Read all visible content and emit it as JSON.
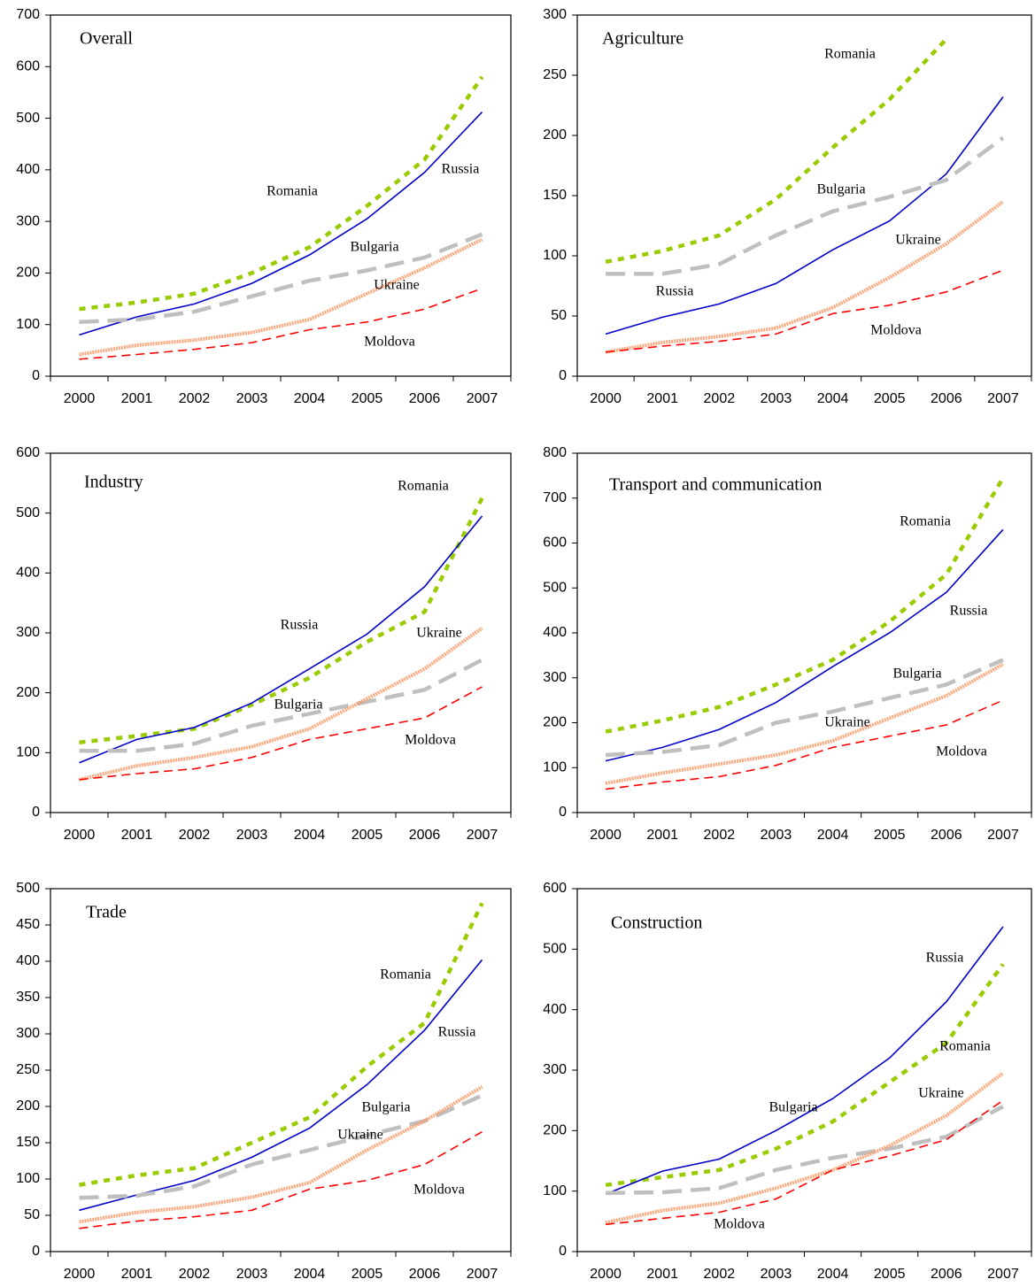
{
  "chart_data": [
    {
      "type": "line",
      "title": "Overall",
      "categories": [
        "2000",
        "2001",
        "2002",
        "2003",
        "2004",
        "2005",
        "2006",
        "2007"
      ],
      "ylim": [
        0,
        700
      ],
      "yticks": [
        0,
        100,
        200,
        300,
        400,
        500,
        600,
        700
      ],
      "series": [
        {
          "name": "Romania",
          "color": "#99cc00",
          "values": [
            130,
            143,
            160,
            200,
            250,
            330,
            420,
            580
          ]
        },
        {
          "name": "Russia",
          "color": "#0000cc",
          "values": [
            80,
            115,
            140,
            180,
            235,
            305,
            395,
            512
          ]
        },
        {
          "name": "Bulgaria",
          "color": "#bfbfbf",
          "values": [
            105,
            110,
            125,
            155,
            185,
            205,
            230,
            275
          ]
        },
        {
          "name": "Ukraine",
          "color": "#ff9966",
          "values": [
            42,
            60,
            70,
            85,
            110,
            160,
            210,
            265
          ]
        },
        {
          "name": "Moldova",
          "color": "#ff0000",
          "values": [
            33,
            42,
            52,
            65,
            90,
            105,
            130,
            170
          ]
        }
      ]
    },
    {
      "type": "line",
      "title": "Agriculture",
      "categories": [
        "2000",
        "2001",
        "2002",
        "2003",
        "2004",
        "2005",
        "2006",
        "2007"
      ],
      "ylim": [
        0,
        300
      ],
      "yticks": [
        0,
        50,
        100,
        150,
        200,
        250,
        300
      ],
      "series": [
        {
          "name": "Romania",
          "color": "#99cc00",
          "values": [
            95,
            104,
            117,
            147,
            190,
            230,
            280,
            null
          ]
        },
        {
          "name": "Russia",
          "color": "#0000cc",
          "values": [
            35,
            49,
            60,
            77,
            105,
            129,
            168,
            232
          ]
        },
        {
          "name": "Bulgaria",
          "color": "#bfbfbf",
          "values": [
            85,
            85,
            93,
            117,
            137,
            149,
            163,
            198
          ]
        },
        {
          "name": "Ukraine",
          "color": "#ff9966",
          "values": [
            20,
            28,
            33,
            40,
            57,
            82,
            110,
            145
          ]
        },
        {
          "name": "Moldova",
          "color": "#ff0000",
          "values": [
            20,
            25,
            29,
            35,
            52,
            59,
            70,
            88
          ]
        }
      ]
    },
    {
      "type": "line",
      "title": "Industry",
      "categories": [
        "2000",
        "2001",
        "2002",
        "2003",
        "2004",
        "2005",
        "2006",
        "2007"
      ],
      "ylim": [
        0,
        600
      ],
      "yticks": [
        0,
        100,
        200,
        300,
        400,
        500,
        600
      ],
      "series": [
        {
          "name": "Romania",
          "color": "#99cc00",
          "values": [
            117,
            128,
            140,
            180,
            225,
            285,
            335,
            525
          ]
        },
        {
          "name": "Russia",
          "color": "#0000cc",
          "values": [
            83,
            122,
            142,
            183,
            240,
            298,
            377,
            495
          ]
        },
        {
          "name": "Bulgaria",
          "color": "#bfbfbf",
          "values": [
            103,
            103,
            115,
            145,
            165,
            185,
            205,
            255
          ]
        },
        {
          "name": "Ukraine",
          "color": "#ff9966",
          "values": [
            55,
            78,
            92,
            110,
            140,
            190,
            240,
            308
          ]
        },
        {
          "name": "Moldova",
          "color": "#ff0000",
          "values": [
            55,
            65,
            73,
            92,
            122,
            140,
            158,
            210
          ]
        }
      ]
    },
    {
      "type": "line",
      "title": "Transport and communication",
      "categories": [
        "2000",
        "2001",
        "2002",
        "2003",
        "2004",
        "2005",
        "2006",
        "2007"
      ],
      "ylim": [
        0,
        800
      ],
      "yticks": [
        0,
        100,
        200,
        300,
        400,
        500,
        600,
        700,
        800
      ],
      "series": [
        {
          "name": "Romania",
          "color": "#99cc00",
          "values": [
            180,
            205,
            235,
            285,
            340,
            425,
            530,
            745
          ]
        },
        {
          "name": "Russia",
          "color": "#0000cc",
          "values": [
            115,
            145,
            185,
            245,
            325,
            400,
            490,
            630
          ]
        },
        {
          "name": "Bulgaria",
          "color": "#bfbfbf",
          "values": [
            128,
            135,
            150,
            200,
            225,
            255,
            285,
            340
          ]
        },
        {
          "name": "Ukraine",
          "color": "#ff9966",
          "values": [
            65,
            88,
            108,
            128,
            160,
            210,
            260,
            330
          ]
        },
        {
          "name": "Moldova",
          "color": "#ff0000",
          "values": [
            52,
            68,
            80,
            105,
            145,
            170,
            195,
            250
          ]
        }
      ]
    },
    {
      "type": "line",
      "title": "Trade",
      "categories": [
        "2000",
        "2001",
        "2002",
        "2003",
        "2004",
        "2005",
        "2006",
        "2007"
      ],
      "ylim": [
        0,
        500
      ],
      "yticks": [
        0,
        50,
        100,
        150,
        200,
        250,
        300,
        350,
        400,
        450,
        500
      ],
      "series": [
        {
          "name": "Romania",
          "color": "#99cc00",
          "values": [
            92,
            105,
            115,
            150,
            185,
            255,
            315,
            480
          ]
        },
        {
          "name": "Russia",
          "color": "#0000cc",
          "values": [
            57,
            78,
            98,
            130,
            170,
            230,
            305,
            402
          ]
        },
        {
          "name": "Bulgaria",
          "color": "#bfbfbf",
          "values": [
            74,
            77,
            90,
            120,
            140,
            160,
            180,
            215
          ]
        },
        {
          "name": "Ukraine",
          "color": "#ff9966",
          "values": [
            41,
            54,
            62,
            75,
            95,
            140,
            180,
            227
          ]
        },
        {
          "name": "Moldova",
          "color": "#ff0000",
          "values": [
            32,
            42,
            48,
            57,
            86,
            98,
            120,
            165
          ]
        }
      ]
    },
    {
      "type": "line",
      "title": "Construction",
      "categories": [
        "2000",
        "2001",
        "2002",
        "2003",
        "2004",
        "2005",
        "2006",
        "2007"
      ],
      "ylim": [
        0,
        600
      ],
      "yticks": [
        0,
        100,
        200,
        300,
        400,
        500,
        600
      ],
      "series": [
        {
          "name": "Romania",
          "color": "#99cc00",
          "values": [
            110,
            123,
            135,
            170,
            215,
            280,
            345,
            475
          ]
        },
        {
          "name": "Russia",
          "color": "#0000cc",
          "values": [
            95,
            133,
            153,
            200,
            253,
            320,
            413,
            537
          ]
        },
        {
          "name": "Bulgaria",
          "color": "#bfbfbf",
          "values": [
            97,
            98,
            105,
            135,
            155,
            170,
            190,
            240
          ]
        },
        {
          "name": "Ukraine",
          "color": "#ff9966",
          "values": [
            48,
            68,
            80,
            105,
            135,
            175,
            225,
            295
          ]
        },
        {
          "name": "Moldova",
          "color": "#ff0000",
          "values": [
            45,
            55,
            65,
            87,
            135,
            158,
            185,
            250
          ]
        }
      ]
    }
  ]
}
